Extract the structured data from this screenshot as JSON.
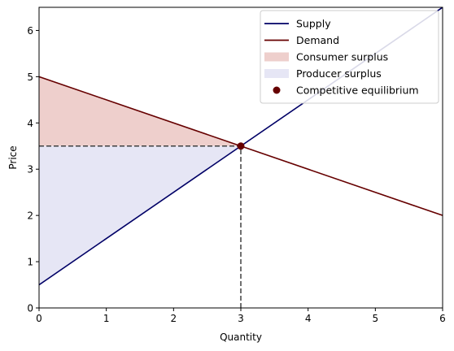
{
  "chart_data": {
    "type": "line",
    "title": "",
    "xlabel": "Quantity",
    "ylabel": "Price",
    "xlim": [
      0,
      6
    ],
    "ylim": [
      0,
      6.5
    ],
    "x_ticks": [
      0,
      1,
      2,
      3,
      4,
      5,
      6
    ],
    "y_ticks": [
      0,
      1,
      2,
      3,
      4,
      5,
      6
    ],
    "grid": false,
    "legend_position": "top-right",
    "series": [
      {
        "name": "Supply",
        "color": "#000066",
        "x": [
          0,
          6
        ],
        "y": [
          0.5,
          6.5
        ]
      },
      {
        "name": "Demand",
        "color": "#660000",
        "x": [
          0,
          6
        ],
        "y": [
          5,
          2
        ]
      }
    ],
    "areas": [
      {
        "name": "Consumer surplus",
        "color": "#eecfcc",
        "x": [
          0,
          0,
          3
        ],
        "y": [
          3.5,
          5,
          3.5
        ]
      },
      {
        "name": "Producer surplus",
        "color": "#e6e6f5",
        "x": [
          0,
          0,
          3
        ],
        "y": [
          0.5,
          3.5,
          3.5
        ]
      }
    ],
    "equilibrium": {
      "name": "Competitive equilibrium",
      "color": "#660000",
      "x": 3,
      "y": 3.5
    },
    "guides": [
      {
        "from": [
          0,
          3.5
        ],
        "to": [
          3,
          3.5
        ]
      },
      {
        "from": [
          3,
          0
        ],
        "to": [
          3,
          3.5
        ]
      }
    ]
  }
}
